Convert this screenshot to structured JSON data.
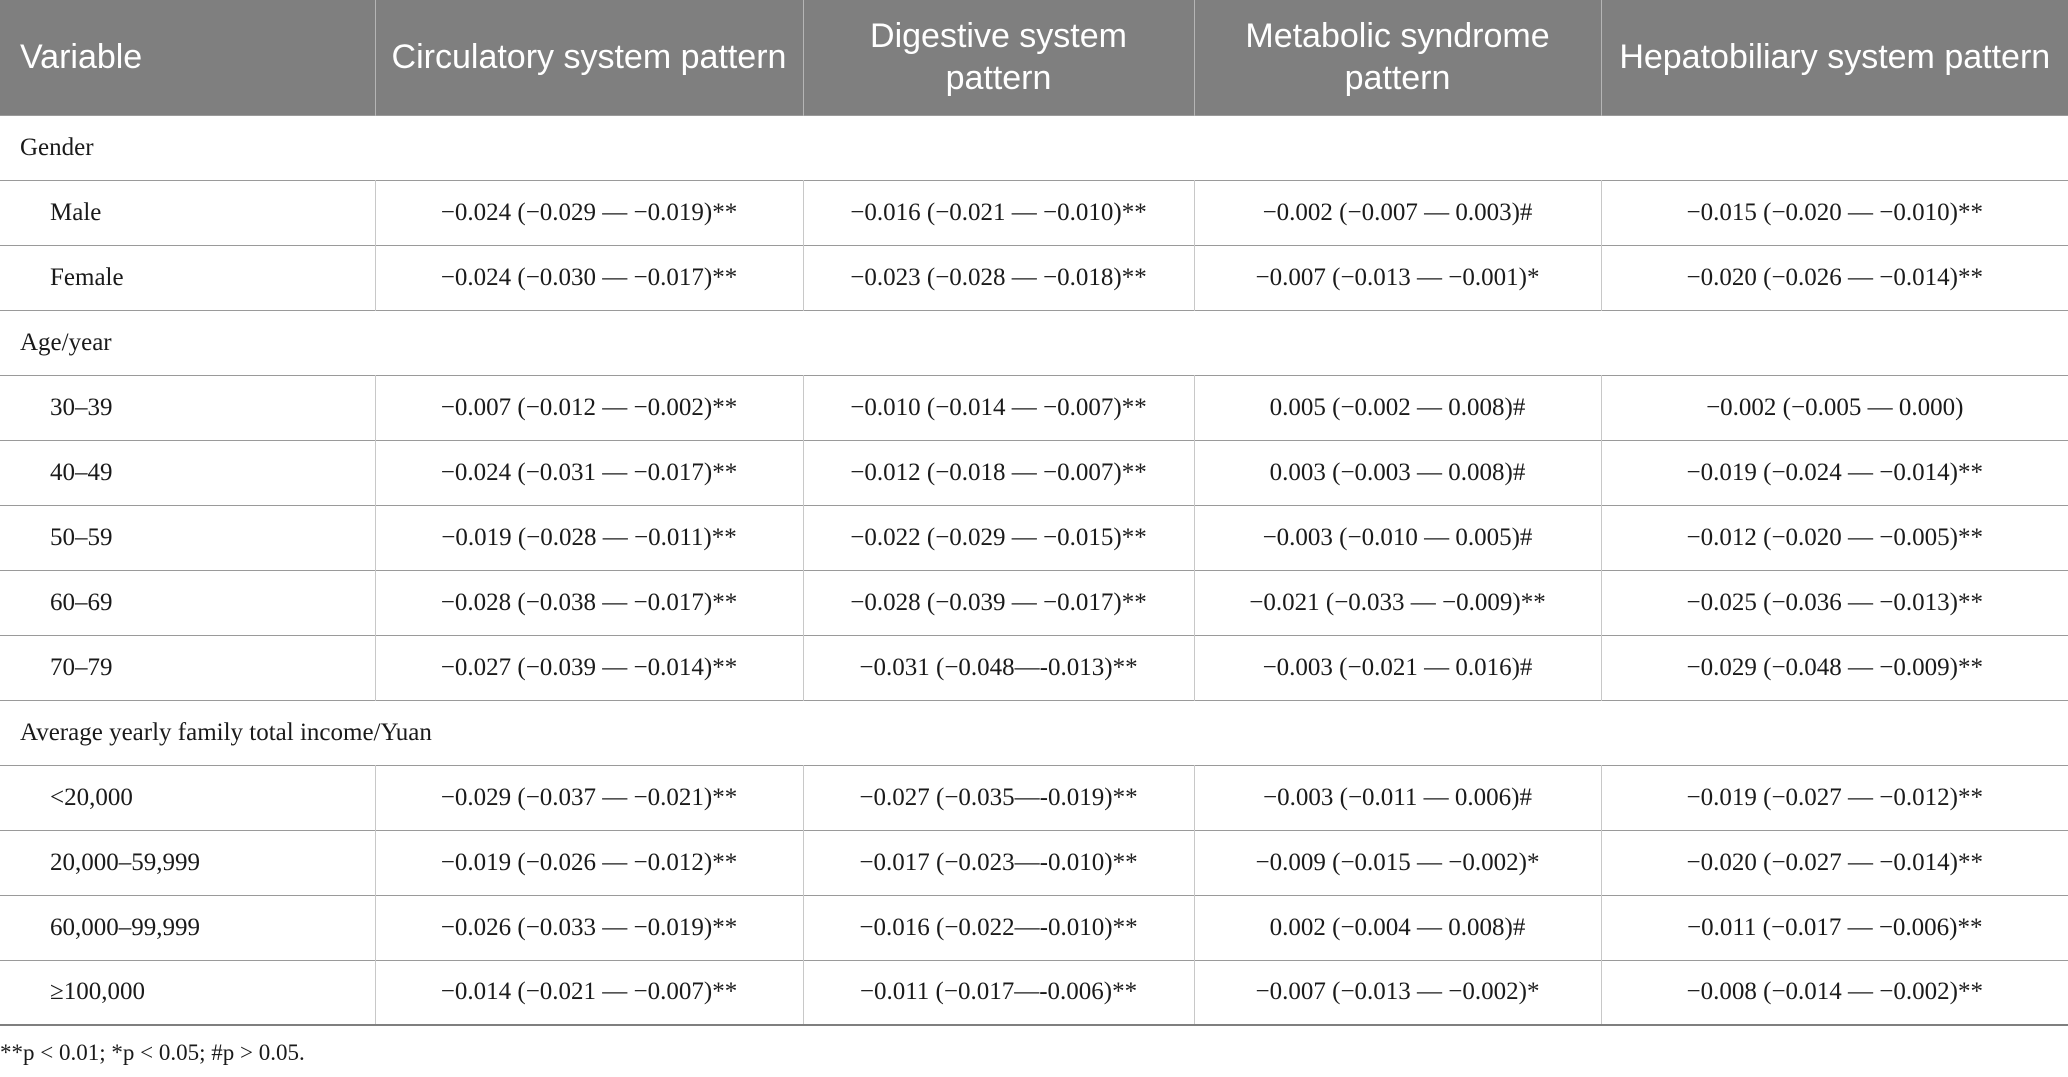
{
  "table": {
    "headers": [
      "Variable",
      "Circulatory system pattern",
      "Digestive system pattern",
      "Metabolic syndrome pattern",
      "Hepatobiliary system pattern"
    ],
    "groups": [
      {
        "label": "Gender",
        "rows": [
          {
            "label": "Male",
            "values": [
              "−0.024 (−0.029 — −0.019)**",
              "−0.016 (−0.021 — −0.010)**",
              "−0.002 (−0.007 — 0.003)#",
              "−0.015 (−0.020 — −0.010)**"
            ]
          },
          {
            "label": "Female",
            "values": [
              "−0.024 (−0.030 — −0.017)**",
              "−0.023 (−0.028 — −0.018)**",
              "−0.007 (−0.013 — −0.001)*",
              "−0.020 (−0.026 — −0.014)**"
            ]
          }
        ]
      },
      {
        "label": "Age/year",
        "rows": [
          {
            "label": "30–39",
            "values": [
              "−0.007 (−0.012 — −0.002)**",
              "−0.010 (−0.014 — −0.007)**",
              "0.005 (−0.002 — 0.008)#",
              "−0.002 (−0.005 — 0.000)"
            ]
          },
          {
            "label": "40–49",
            "values": [
              "−0.024 (−0.031 — −0.017)**",
              "−0.012 (−0.018 — −0.007)**",
              "0.003 (−0.003 — 0.008)#",
              "−0.019 (−0.024 — −0.014)**"
            ]
          },
          {
            "label": "50–59",
            "values": [
              "−0.019 (−0.028 — −0.011)**",
              "−0.022 (−0.029 — −0.015)**",
              "−0.003 (−0.010 — 0.005)#",
              "−0.012 (−0.020 — −0.005)**"
            ]
          },
          {
            "label": "60–69",
            "values": [
              "−0.028 (−0.038 — −0.017)**",
              "−0.028 (−0.039 — −0.017)**",
              "−0.021 (−0.033 — −0.009)**",
              "−0.025 (−0.036 — −0.013)**"
            ]
          },
          {
            "label": "70–79",
            "values": [
              "−0.027 (−0.039 — −0.014)**",
              "−0.031 (−0.048—-0.013)**",
              "−0.003 (−0.021 — 0.016)#",
              "−0.029 (−0.048 — −0.009)**"
            ]
          }
        ]
      },
      {
        "label": "Average yearly family total income/Yuan",
        "rows": [
          {
            "label": "<20,000",
            "values": [
              "−0.029 (−0.037 — −0.021)**",
              "−0.027 (−0.035—-0.019)**",
              "−0.003 (−0.011 — 0.006)#",
              "−0.019 (−0.027 — −0.012)**"
            ]
          },
          {
            "label": "20,000–59,999",
            "values": [
              "−0.019 (−0.026 — −0.012)**",
              "−0.017 (−0.023—-0.010)**",
              "−0.009 (−0.015 — −0.002)*",
              "−0.020 (−0.027 — −0.014)**"
            ]
          },
          {
            "label": "60,000–99,999",
            "values": [
              "−0.026 (−0.033 — −0.019)**",
              "−0.016 (−0.022—-0.010)**",
              "0.002 (−0.004 — 0.008)#",
              "−0.011 (−0.017 — −0.006)**"
            ]
          },
          {
            "label": "≥100,000",
            "values": [
              "−0.014 (−0.021 — −0.007)**",
              "−0.011 (−0.017—-0.006)**",
              "−0.007 (−0.013 — −0.002)*",
              "−0.008 (−0.014 — −0.002)**"
            ]
          }
        ]
      }
    ]
  },
  "footnote": "**p < 0.01; *p < 0.05; #p > 0.05."
}
